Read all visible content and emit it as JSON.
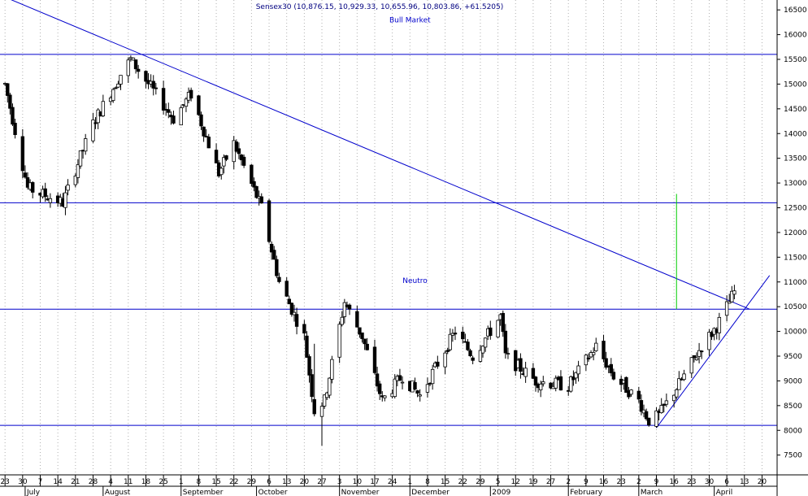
{
  "chart_data": {
    "type": "candlestick",
    "title": "Sensex30 (10,876.15, 10,929.33, 10,655.96, 10,803.86, +61.5205)",
    "ylim": [
      7100,
      16700
    ],
    "yticks": [
      7500,
      8000,
      8500,
      9000,
      9500,
      10000,
      10500,
      11000,
      11500,
      12000,
      12500,
      13000,
      13500,
      14000,
      14500,
      15000,
      15500,
      16000,
      16500
    ],
    "xlim": [
      "2008-06-21",
      "2009-04-26"
    ],
    "day_labels": [
      {
        "date": "2008-06-23",
        "label": "23"
      },
      {
        "date": "2008-06-30",
        "label": "30"
      },
      {
        "date": "2008-07-07",
        "label": "7"
      },
      {
        "date": "2008-07-14",
        "label": "14"
      },
      {
        "date": "2008-07-21",
        "label": "21"
      },
      {
        "date": "2008-07-28",
        "label": "28"
      },
      {
        "date": "2008-08-04",
        "label": "4"
      },
      {
        "date": "2008-08-11",
        "label": "11"
      },
      {
        "date": "2008-08-18",
        "label": "18"
      },
      {
        "date": "2008-08-25",
        "label": "25"
      },
      {
        "date": "2008-09-01",
        "label": "1"
      },
      {
        "date": "2008-09-08",
        "label": "8"
      },
      {
        "date": "2008-09-15",
        "label": "15"
      },
      {
        "date": "2008-09-22",
        "label": "22"
      },
      {
        "date": "2008-09-29",
        "label": "29"
      },
      {
        "date": "2008-10-06",
        "label": "6"
      },
      {
        "date": "2008-10-13",
        "label": "13"
      },
      {
        "date": "2008-10-20",
        "label": "20"
      },
      {
        "date": "2008-10-27",
        "label": "27"
      },
      {
        "date": "2008-11-03",
        "label": "3"
      },
      {
        "date": "2008-11-10",
        "label": "10"
      },
      {
        "date": "2008-11-17",
        "label": "17"
      },
      {
        "date": "2008-11-24",
        "label": "24"
      },
      {
        "date": "2008-12-01",
        "label": "1"
      },
      {
        "date": "2008-12-08",
        "label": "8"
      },
      {
        "date": "2008-12-15",
        "label": "15"
      },
      {
        "date": "2008-12-22",
        "label": "22"
      },
      {
        "date": "2008-12-29",
        "label": "29"
      },
      {
        "date": "2009-01-05",
        "label": "5"
      },
      {
        "date": "2009-01-12",
        "label": "12"
      },
      {
        "date": "2009-01-19",
        "label": "19"
      },
      {
        "date": "2009-01-26",
        "label": "27"
      },
      {
        "date": "2009-02-02",
        "label": "2"
      },
      {
        "date": "2009-02-09",
        "label": "9"
      },
      {
        "date": "2009-02-16",
        "label": "16"
      },
      {
        "date": "2009-02-23",
        "label": "23"
      },
      {
        "date": "2009-03-02",
        "label": "2"
      },
      {
        "date": "2009-03-09",
        "label": "9"
      },
      {
        "date": "2009-03-16",
        "label": "16"
      },
      {
        "date": "2009-03-23",
        "label": "23"
      },
      {
        "date": "2009-03-30",
        "label": "30"
      },
      {
        "date": "2009-04-06",
        "label": "6"
      },
      {
        "date": "2009-04-13",
        "label": "13"
      },
      {
        "date": "2009-04-20",
        "label": "20"
      }
    ],
    "month_labels": [
      {
        "date": "2008-07-01",
        "label": "July"
      },
      {
        "date": "2008-08-01",
        "label": "August"
      },
      {
        "date": "2008-09-01",
        "label": "September"
      },
      {
        "date": "2008-10-01",
        "label": "October"
      },
      {
        "date": "2008-11-03",
        "label": "November"
      },
      {
        "date": "2008-12-01",
        "label": "December"
      },
      {
        "date": "2009-01-02",
        "label": "2009"
      },
      {
        "date": "2009-02-02",
        "label": "February"
      },
      {
        "date": "2009-03-02",
        "label": "March"
      },
      {
        "date": "2009-04-01",
        "label": "April"
      }
    ],
    "anchors": [
      {
        "date": "2008-06-23",
        "value": 15000
      },
      {
        "date": "2008-07-02",
        "value": 12900
      },
      {
        "date": "2008-07-16",
        "value": 12600
      },
      {
        "date": "2008-07-28",
        "value": 14200
      },
      {
        "date": "2008-08-08",
        "value": 15200
      },
      {
        "date": "2008-08-12",
        "value": 15500
      },
      {
        "date": "2008-08-29",
        "value": 14300
      },
      {
        "date": "2008-09-05",
        "value": 14800
      },
      {
        "date": "2008-09-16",
        "value": 13200
      },
      {
        "date": "2008-09-22",
        "value": 13800
      },
      {
        "date": "2008-10-03",
        "value": 12500
      },
      {
        "date": "2008-10-10",
        "value": 11000
      },
      {
        "date": "2008-10-20",
        "value": 9900
      },
      {
        "date": "2008-10-24",
        "value": 8400
      },
      {
        "date": "2008-10-28",
        "value": 8600
      },
      {
        "date": "2008-11-05",
        "value": 10600
      },
      {
        "date": "2008-11-12",
        "value": 9900
      },
      {
        "date": "2008-11-20",
        "value": 8600
      },
      {
        "date": "2008-11-28",
        "value": 9100
      },
      {
        "date": "2008-12-05",
        "value": 8700
      },
      {
        "date": "2008-12-19",
        "value": 10000
      },
      {
        "date": "2008-12-26",
        "value": 9500
      },
      {
        "date": "2009-01-06",
        "value": 10300
      },
      {
        "date": "2009-01-08",
        "value": 9500
      },
      {
        "date": "2009-01-20",
        "value": 9000
      },
      {
        "date": "2009-02-02",
        "value": 8900
      },
      {
        "date": "2009-02-13",
        "value": 9700
      },
      {
        "date": "2009-02-20",
        "value": 9100
      },
      {
        "date": "2009-03-02",
        "value": 8600
      },
      {
        "date": "2009-03-06",
        "value": 8200
      },
      {
        "date": "2009-03-10",
        "value": 8300
      },
      {
        "date": "2009-03-20",
        "value": 9100
      },
      {
        "date": "2009-03-27",
        "value": 9700
      },
      {
        "date": "2009-04-02",
        "value": 10100
      },
      {
        "date": "2009-04-09",
        "value": 10800
      }
    ],
    "spikes": [
      {
        "date": "2008-10-27",
        "low": 7690
      },
      {
        "date": "2008-10-24",
        "high": 9750
      }
    ],
    "horizontal_lines": [
      15600,
      12600,
      10450,
      8100
    ],
    "trend_lines": [
      {
        "from": {
          "date": "2008-06-21",
          "value": 16800
        },
        "to": {
          "date": "2009-04-15",
          "value": 10450
        }
      },
      {
        "from": {
          "date": "2009-03-09",
          "value": 8050
        },
        "to": {
          "date": "2009-04-23",
          "value": 11130
        }
      }
    ],
    "vertical_marker": {
      "date": "2009-03-17",
      "from": 10450,
      "to": 12780,
      "color": "#00cc00"
    },
    "annotations": [
      {
        "label": "Bull Market",
        "date": "2008-12-01",
        "value": 16250
      },
      {
        "label": "Neutro",
        "date": "2008-12-03",
        "value": 10980
      }
    ],
    "colors": {
      "lines": "#0000cc",
      "candles": "#000000",
      "grid": "#b0b0b0",
      "marker": "#00cc00",
      "title": "#000080"
    }
  }
}
